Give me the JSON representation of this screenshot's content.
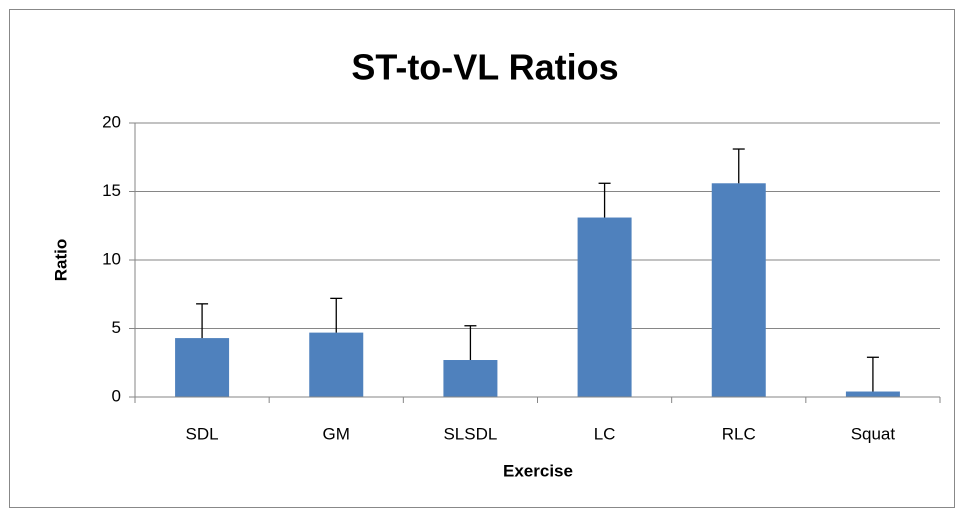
{
  "chart_data": {
    "type": "bar",
    "title": "ST-to-VL Ratios",
    "x_label": "Exercise",
    "y_label": "Ratio",
    "categories": [
      "SDL",
      "GM",
      "SLSDL",
      "LC",
      "RLC",
      "Squat"
    ],
    "values": [
      4.3,
      4.7,
      2.7,
      13.1,
      15.6,
      0.4
    ],
    "errors": [
      2.5,
      2.5,
      2.5,
      2.5,
      2.5,
      2.5
    ],
    "color": "#4f81bd",
    "ylim": [
      0,
      20
    ],
    "yticks": [
      0,
      5,
      10,
      15,
      20
    ],
    "grid": true
  }
}
